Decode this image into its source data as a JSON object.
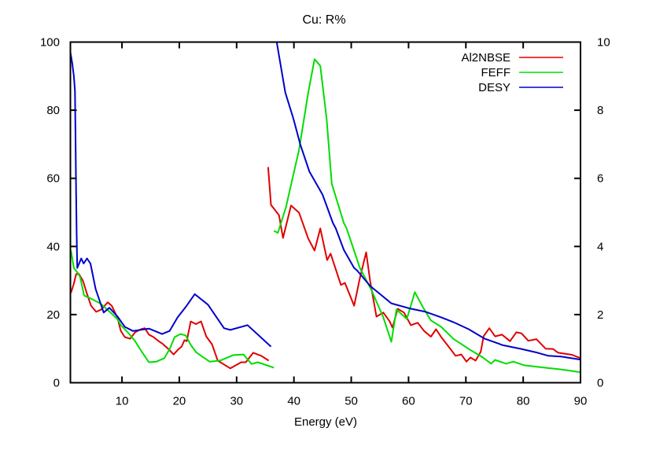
{
  "chart_data": {
    "type": "line",
    "title": "Cu: R%",
    "xlabel": "Energy (eV)",
    "ylabel": "",
    "xlim": [
      1,
      90
    ],
    "ylim": [
      0,
      100
    ],
    "y2lim": [
      0,
      10
    ],
    "xticks": [
      10,
      20,
      30,
      40,
      50,
      60,
      70,
      80,
      90
    ],
    "yticks": [
      0,
      20,
      40,
      60,
      80,
      100
    ],
    "y2ticks": [
      0,
      2,
      4,
      6,
      8,
      10
    ],
    "grid": false,
    "legend_position": "top-right",
    "series": [
      {
        "name": "Al2NBSE",
        "color": "#e00000",
        "segments": [
          [
            [
              1.1,
              26.4
            ],
            [
              1.6,
              29.1
            ],
            [
              2.0,
              31.9
            ],
            [
              2.5,
              31.9
            ],
            [
              3.2,
              29.9
            ],
            [
              3.9,
              26.1
            ],
            [
              4.6,
              22.6
            ],
            [
              5.5,
              20.8
            ],
            [
              6.4,
              21.5
            ],
            [
              7.5,
              23.6
            ],
            [
              8.2,
              22.6
            ],
            [
              9.2,
              19.2
            ],
            [
              9.8,
              15.2
            ],
            [
              10.5,
              13.4
            ],
            [
              11.4,
              12.9
            ],
            [
              12.3,
              14.8
            ],
            [
              13.3,
              15.7
            ],
            [
              14.0,
              16.0
            ],
            [
              14.7,
              14.1
            ],
            [
              15.5,
              13.4
            ],
            [
              16.4,
              12.2
            ],
            [
              17.1,
              11.4
            ],
            [
              18.1,
              9.9
            ],
            [
              19.0,
              8.3
            ],
            [
              19.9,
              9.9
            ],
            [
              20.4,
              10.6
            ],
            [
              20.9,
              12.5
            ],
            [
              21.3,
              12.2
            ],
            [
              22.0,
              18.0
            ],
            [
              22.9,
              17.2
            ],
            [
              23.8,
              18.0
            ],
            [
              24.7,
              13.6
            ],
            [
              25.7,
              11.3
            ],
            [
              26.7,
              6.5
            ],
            [
              28.9,
              4.2
            ],
            [
              30.8,
              6.0
            ],
            [
              31.6,
              6.0
            ],
            [
              32.9,
              8.8
            ],
            [
              34.3,
              7.9
            ],
            [
              35.6,
              6.5
            ]
          ],
          [
            [
              35.5,
              63.3
            ],
            [
              36.0,
              52.2
            ],
            [
              37.4,
              49.2
            ],
            [
              38.1,
              42.5
            ],
            [
              39.5,
              52.0
            ],
            [
              40.9,
              49.9
            ],
            [
              42.5,
              42.3
            ],
            [
              43.6,
              38.8
            ],
            [
              44.6,
              45.3
            ],
            [
              45.8,
              36.0
            ],
            [
              46.4,
              37.9
            ],
            [
              48.2,
              28.7
            ],
            [
              48.9,
              29.3
            ],
            [
              50.5,
              22.6
            ],
            [
              51.5,
              30.7
            ],
            [
              52.6,
              38.3
            ],
            [
              53.3,
              29.8
            ],
            [
              54.4,
              19.4
            ],
            [
              55.6,
              20.6
            ],
            [
              56.7,
              18.0
            ],
            [
              57.2,
              16.2
            ],
            [
              58.1,
              21.7
            ],
            [
              59.2,
              20.6
            ],
            [
              60.4,
              16.9
            ],
            [
              61.6,
              17.6
            ],
            [
              62.7,
              15.2
            ],
            [
              63.9,
              13.5
            ],
            [
              64.8,
              15.7
            ],
            [
              65.7,
              13.4
            ],
            [
              66.8,
              11.0
            ],
            [
              68.2,
              7.9
            ],
            [
              69.2,
              8.3
            ],
            [
              70.1,
              6.2
            ],
            [
              70.8,
              7.4
            ],
            [
              71.7,
              6.5
            ],
            [
              72.6,
              9.1
            ],
            [
              73.1,
              13.7
            ],
            [
              74.1,
              16.0
            ],
            [
              75.1,
              13.6
            ],
            [
              76.3,
              14.1
            ],
            [
              77.7,
              12.2
            ],
            [
              78.8,
              14.8
            ],
            [
              79.7,
              14.5
            ],
            [
              80.9,
              12.3
            ],
            [
              82.3,
              12.8
            ],
            [
              83.9,
              10.0
            ],
            [
              85.2,
              9.9
            ],
            [
              86.1,
              8.8
            ],
            [
              88.5,
              8.2
            ],
            [
              90.0,
              7.2
            ]
          ]
        ]
      },
      {
        "name": "FEFF",
        "color": "#00dd00",
        "segments": [
          [
            [
              1.1,
              38.8
            ],
            [
              1.6,
              33.7
            ],
            [
              2.3,
              32.2
            ],
            [
              2.7,
              31.0
            ],
            [
              3.4,
              25.6
            ],
            [
              4.8,
              24.5
            ],
            [
              6.2,
              23.3
            ],
            [
              8.0,
              20.6
            ],
            [
              9.2,
              18.7
            ],
            [
              9.8,
              16.9
            ],
            [
              11.0,
              14.8
            ],
            [
              12.3,
              12.2
            ],
            [
              13.3,
              9.5
            ],
            [
              14.7,
              6.0
            ],
            [
              16.0,
              6.2
            ],
            [
              17.4,
              7.2
            ],
            [
              18.3,
              9.9
            ],
            [
              19.2,
              13.4
            ],
            [
              20.2,
              14.3
            ],
            [
              21.1,
              13.9
            ],
            [
              22.0,
              11.1
            ],
            [
              22.9,
              9.0
            ],
            [
              23.8,
              7.9
            ],
            [
              25.3,
              6.2
            ],
            [
              27.1,
              6.5
            ],
            [
              29.4,
              8.1
            ],
            [
              31.2,
              8.3
            ],
            [
              32.6,
              5.5
            ],
            [
              33.7,
              6.0
            ],
            [
              36.5,
              4.4
            ]
          ],
          [
            [
              36.5,
              44.6
            ],
            [
              37.2,
              44.0
            ],
            [
              38.6,
              51.5
            ],
            [
              40.9,
              68.4
            ],
            [
              42.5,
              85.2
            ],
            [
              43.6,
              95.0
            ],
            [
              44.6,
              93.0
            ],
            [
              45.7,
              77.6
            ],
            [
              46.6,
              58.4
            ],
            [
              48.7,
              46.9
            ],
            [
              49.2,
              45.3
            ],
            [
              51.5,
              33.7
            ],
            [
              53.5,
              27.3
            ],
            [
              55.6,
              19.2
            ],
            [
              57.0,
              12.0
            ],
            [
              57.9,
              21.5
            ],
            [
              59.7,
              18.7
            ],
            [
              61.1,
              26.6
            ],
            [
              62.5,
              22.2
            ],
            [
              63.9,
              18.3
            ],
            [
              65.7,
              16.4
            ],
            [
              67.8,
              12.9
            ],
            [
              70.5,
              9.9
            ],
            [
              72.8,
              7.6
            ],
            [
              74.4,
              5.6
            ],
            [
              75.1,
              6.7
            ],
            [
              77.0,
              5.6
            ],
            [
              78.3,
              6.2
            ],
            [
              80.2,
              5.1
            ],
            [
              83.3,
              4.5
            ],
            [
              86.6,
              3.9
            ],
            [
              90.0,
              3.1
            ]
          ]
        ]
      },
      {
        "name": "DESY",
        "color": "#0000cc",
        "segments": [
          [
            [
              1.0,
              97.0
            ],
            [
              1.3,
              94.0
            ],
            [
              1.6,
              90.0
            ],
            [
              1.8,
              85.7
            ],
            [
              1.9,
              70.0
            ],
            [
              2.0,
              55.0
            ],
            [
              2.1,
              43.0
            ],
            [
              2.2,
              33.7
            ],
            [
              2.9,
              36.5
            ],
            [
              3.3,
              35.0
            ],
            [
              3.9,
              36.5
            ],
            [
              4.5,
              35.0
            ],
            [
              5.4,
              27.5
            ],
            [
              6.8,
              20.6
            ],
            [
              7.8,
              22.0
            ],
            [
              9.2,
              19.5
            ],
            [
              10.5,
              16.4
            ],
            [
              11.9,
              15.2
            ],
            [
              14.7,
              15.9
            ],
            [
              17.0,
              14.3
            ],
            [
              18.3,
              15.2
            ],
            [
              19.7,
              19.2
            ],
            [
              21.1,
              22.2
            ],
            [
              22.7,
              26.0
            ],
            [
              25.0,
              22.9
            ],
            [
              27.8,
              16.0
            ],
            [
              28.9,
              15.5
            ],
            [
              31.9,
              16.9
            ],
            [
              36.0,
              10.6
            ]
          ],
          [
            [
              37.0,
              100.0
            ],
            [
              38.5,
              85.2
            ],
            [
              39.9,
              77.6
            ],
            [
              41.1,
              70.0
            ],
            [
              42.7,
              62.0
            ],
            [
              45.0,
              55.2
            ],
            [
              46.8,
              46.9
            ],
            [
              47.3,
              45.3
            ],
            [
              48.7,
              39.0
            ],
            [
              50.5,
              33.7
            ],
            [
              51.0,
              33.0
            ],
            [
              53.3,
              28.4
            ],
            [
              57.0,
              23.3
            ],
            [
              60.2,
              21.8
            ],
            [
              63.0,
              20.8
            ],
            [
              65.7,
              19.2
            ],
            [
              67.8,
              17.8
            ],
            [
              70.5,
              15.7
            ],
            [
              73.3,
              12.9
            ],
            [
              76.5,
              11.0
            ],
            [
              79.7,
              9.9
            ],
            [
              82.5,
              8.8
            ],
            [
              84.4,
              7.9
            ],
            [
              86.6,
              7.7
            ],
            [
              90.0,
              6.8
            ]
          ]
        ]
      }
    ]
  }
}
